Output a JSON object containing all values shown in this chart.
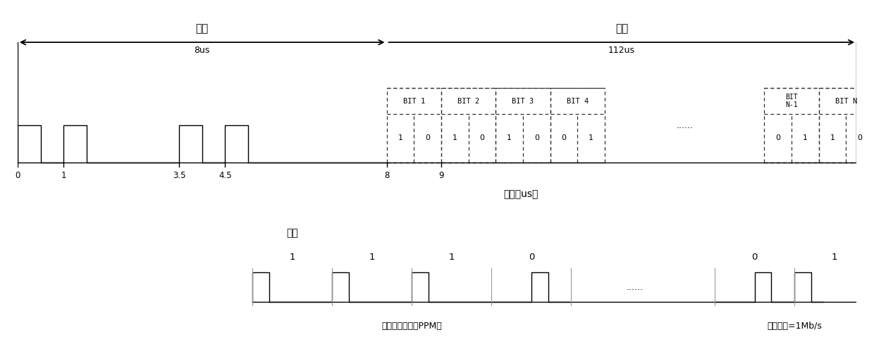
{
  "fig_width": 12.4,
  "fig_height": 4.96,
  "dpi": 100,
  "top_title_baotou": "报头",
  "top_title_8us": "8us",
  "top_title_baowen": "报文",
  "top_title_112us": "112us",
  "time_label": "时间（us）",
  "ppm_label": "脉冲位置编码（PPM）",
  "rate_label": "通信速率=1Mb/s",
  "example_label": "示例",
  "bit_labels_1to4": [
    "BIT 1",
    "BIT 2",
    "BIT 3",
    "BIT 4"
  ],
  "bit_label_nm1": "BIT\nN-1",
  "bit_label_n": "BIT N",
  "data_bits_1to4": [
    "1",
    "0",
    "1",
    "0",
    "1",
    "0",
    "0",
    "1"
  ],
  "data_bits_last": [
    "0",
    "1",
    "1",
    "0"
  ],
  "dots": "......",
  "background_color": "#ffffff",
  "signal_color": "#000000",
  "text_color": "#000000"
}
